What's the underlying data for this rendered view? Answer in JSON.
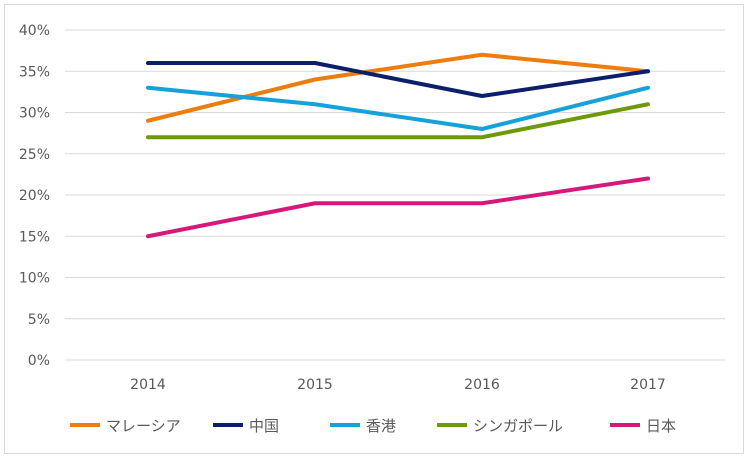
{
  "chart_data": {
    "type": "line",
    "x": [
      "2014",
      "2015",
      "2016",
      "2017"
    ],
    "ylim": [
      0,
      40
    ],
    "yticks": [
      0,
      5,
      10,
      15,
      20,
      25,
      30,
      35,
      40
    ],
    "ytick_labels": [
      "0%",
      "5%",
      "10%",
      "15%",
      "20%",
      "25%",
      "30%",
      "35%",
      "40%"
    ],
    "grid": "horizontal",
    "legend_position": "bottom",
    "series": [
      {
        "name": "マレーシア",
        "color": "#ed7d0e",
        "values": [
          29,
          34,
          37,
          35
        ]
      },
      {
        "name": "中国",
        "color": "#0b1f6b",
        "values": [
          36,
          36,
          32,
          35
        ]
      },
      {
        "name": "香港",
        "color": "#16a2d8",
        "values": [
          33,
          31,
          28,
          33
        ]
      },
      {
        "name": "シンガポール",
        "color": "#6e9a0a",
        "values": [
          27,
          27,
          27,
          31
        ]
      },
      {
        "name": "日本",
        "color": "#d6187a",
        "values": [
          15,
          19,
          19,
          22
        ]
      }
    ]
  }
}
